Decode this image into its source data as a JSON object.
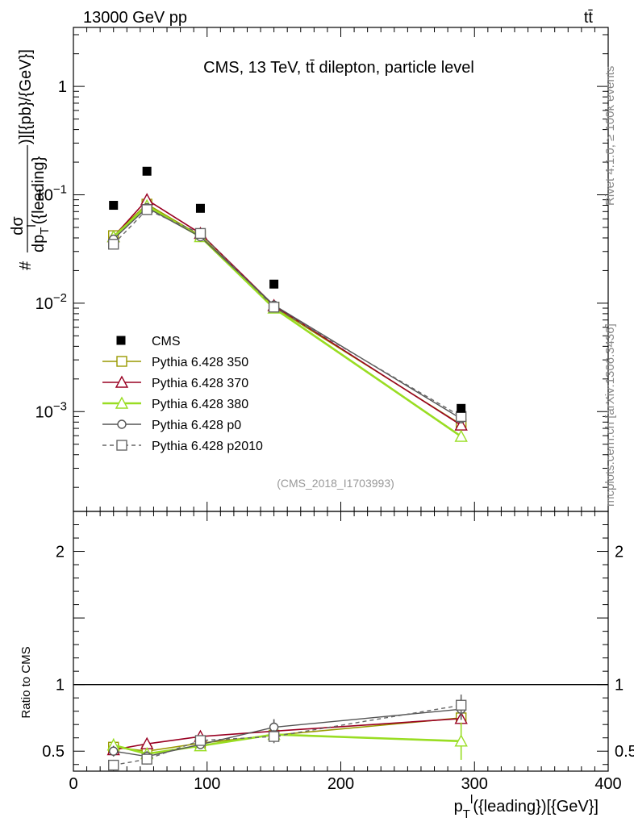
{
  "header": {
    "left": "13000 GeV pp",
    "right": "tt̄"
  },
  "side_labels": {
    "rivet": "Rivet 4.1.0, ≥ 100k events",
    "mcplots": "mcplots.cern.ch [arXiv:1306.3436]"
  },
  "watermark": "(CMS_2018_I1703993)",
  "chart_data": {
    "type": "scatter",
    "title": "CMS, 13 TeV, tt̄ dilepton, particle level",
    "xlabel": "p_T^l({leading})[{GeV}]",
    "xlabel_main": "p",
    "xlabel_sub": "T",
    "xlabel_sup": "l",
    "xlabel_rest": "({leading})[{GeV}]",
    "ylabel": "# dσ / dp_T^l({leading}) )[{pb}/{GeV}]",
    "ylabel_hash": "#",
    "ylabel_num": "dσ",
    "ylabel_den": "dp",
    "ylabel_den_sub": "T",
    "ylabel_den_sup": "l",
    "ylabel_den_rest": "({leading}",
    "ylabel_tail": ")][{pb}/{GeV}]",
    "xlim": [
      0,
      400
    ],
    "ylim_main": [
      0.00012,
      3.5
    ],
    "ylim_ratio": [
      0.35,
      2.3
    ],
    "ratio_ylabel": "Ratio to CMS",
    "x_ticks": [
      "0",
      "100",
      "200",
      "300",
      "400"
    ],
    "main_ticks": [
      {
        "value": 1,
        "base": "1",
        "exp": ""
      },
      {
        "value": 0.1,
        "base": "10",
        "exp": "−1"
      },
      {
        "value": 0.01,
        "base": "10",
        "exp": "−2"
      },
      {
        "value": 0.001,
        "base": "10",
        "exp": "−3"
      }
    ],
    "ratio_ticks": [
      {
        "value": 2,
        "label": "2"
      },
      {
        "value": 1,
        "label": "1"
      },
      {
        "value": 0.5,
        "label": "0.5"
      }
    ],
    "x": [
      30,
      55,
      95,
      150,
      290
    ],
    "data": {
      "name": "CMS",
      "values": [
        0.08,
        0.165,
        0.075,
        0.015,
        0.00107
      ]
    },
    "series": [
      {
        "name": "Pythia 6.428 350",
        "color": "#999900",
        "marker": "square",
        "dash": "",
        "width": 1.6,
        "values": [
          0.042,
          0.082,
          0.042,
          0.0092,
          0.00076
        ],
        "ratio": [
          0.53,
          0.5,
          0.56,
          0.62,
          0.75
        ],
        "ratio_err": [
          0.04,
          0.04,
          0.03,
          0.05,
          0.05
        ]
      },
      {
        "name": "Pythia 6.428 370",
        "color": "#990022",
        "marker": "triangle",
        "dash": "",
        "width": 1.6,
        "values": [
          0.041,
          0.09,
          0.044,
          0.0095,
          0.00075
        ],
        "ratio": [
          0.51,
          0.555,
          0.61,
          0.65,
          0.745
        ],
        "ratio_err": [
          0.04,
          0.04,
          0.03,
          0.05,
          0.05
        ]
      },
      {
        "name": "Pythia 6.428 380",
        "color": "#99dd22",
        "marker": "triangle",
        "dash": "",
        "width": 2.6,
        "values": [
          0.041,
          0.079,
          0.041,
          0.009,
          0.00059
        ],
        "ratio": [
          0.545,
          0.48,
          0.54,
          0.625,
          0.575
        ],
        "ratio_err": [
          0.05,
          0.04,
          0.03,
          0.05,
          0.14
        ]
      },
      {
        "name": "Pythia 6.428 p0",
        "color": "#555555",
        "marker": "circle",
        "dash": "",
        "width": 1.4,
        "values": [
          0.039,
          0.076,
          0.041,
          0.0096,
          0.00086
        ],
        "ratio": [
          0.5,
          0.46,
          0.55,
          0.68,
          0.815
        ],
        "ratio_err": [
          0.04,
          0.04,
          0.03,
          0.06,
          0.08
        ]
      },
      {
        "name": "Pythia 6.428 p2010",
        "color": "#666666",
        "marker": "square",
        "dash": "5,4",
        "width": 1.4,
        "values": [
          0.035,
          0.073,
          0.044,
          0.0092,
          0.0009
        ],
        "ratio": [
          0.395,
          0.44,
          0.58,
          0.61,
          0.845
        ],
        "ratio_err": [
          0.04,
          0.04,
          0.03,
          0.05,
          0.08
        ]
      }
    ]
  }
}
